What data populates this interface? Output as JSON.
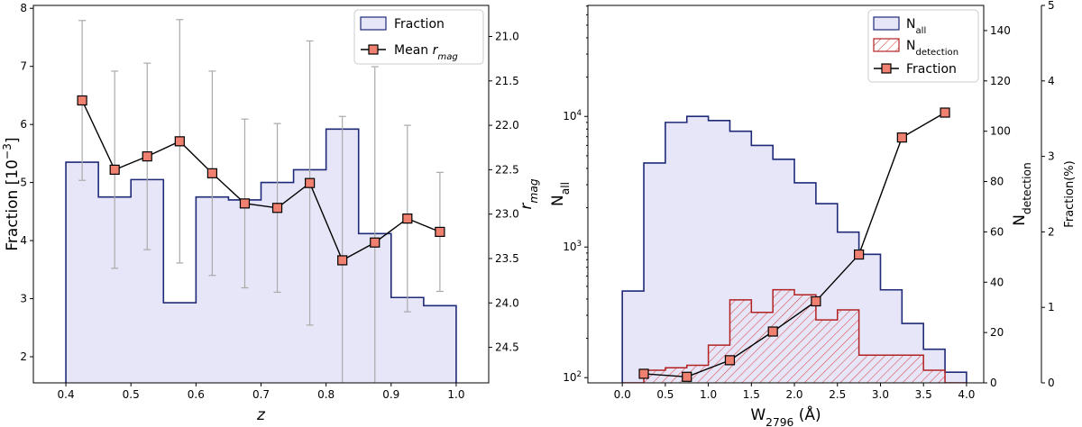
{
  "chart_data": [
    {
      "type": "bar",
      "panel": "left",
      "xlabel": "z",
      "ylabel": "Fraction [10⁻³]",
      "ylabel_right": "r_mag",
      "xlim": [
        0.35,
        1.05
      ],
      "ylim": [
        1.55,
        8.05
      ],
      "ylim_right_top": 20.65,
      "ylim_right_bottom": 24.9,
      "right_axis_inverted": true,
      "xticks": [
        "0.4",
        "0.5",
        "0.6",
        "0.7",
        "0.8",
        "0.9",
        "1.0"
      ],
      "yticks": [
        "2",
        "3",
        "4",
        "5",
        "6",
        "7",
        "8"
      ],
      "yticks_right": [
        "21.0",
        "21.5",
        "22.0",
        "22.5",
        "23.0",
        "23.5",
        "24.0",
        "24.5"
      ],
      "legend": {
        "placement": "top-right",
        "entries": [
          "Fraction",
          "Mean r_mag"
        ]
      },
      "bin_edges": [
        0.4,
        0.45,
        0.5,
        0.55,
        0.6,
        0.65,
        0.7,
        0.75,
        0.8,
        0.85,
        0.9,
        0.95,
        1.0
      ],
      "series": [
        {
          "name": "Fraction",
          "kind": "step-fill",
          "values": [
            5.35,
            4.75,
            5.05,
            2.93,
            4.75,
            4.7,
            5.0,
            5.22,
            5.92,
            4.12,
            3.02,
            2.88
          ]
        },
        {
          "name": "Mean r_mag",
          "kind": "line-markers-errorbars",
          "x": [
            0.425,
            0.475,
            0.525,
            0.575,
            0.625,
            0.675,
            0.725,
            0.775,
            0.825,
            0.875,
            0.925,
            0.975
          ],
          "y": [
            21.72,
            22.5,
            22.35,
            22.18,
            22.54,
            22.88,
            22.93,
            22.65,
            23.52,
            23.32,
            23.05,
            23.2
          ],
          "err": [
            0.9,
            1.11,
            1.05,
            1.37,
            1.15,
            0.95,
            0.95,
            1.6,
            1.62,
            1.98,
            1.05,
            0.67
          ]
        }
      ],
      "colors": {
        "fill": "#e6e6f8",
        "edge": "#1e2a78",
        "marker": "#f08070",
        "errorbar": "#aaaaaa"
      }
    },
    {
      "type": "bar",
      "panel": "right",
      "xlabel": "W2796 (Å)",
      "ylabel": "N_all",
      "ylabel_right_inner": "N_detection",
      "ylabel_right_outer": "Fraction(%)",
      "xlim": [
        -0.4,
        4.2
      ],
      "y_scale": "log",
      "ylim_log10": [
        1.96,
        4.85
      ],
      "ylim_right_inner": [
        0,
        150
      ],
      "ylim_right_outer": [
        0,
        5
      ],
      "xticks": [
        "0.0",
        "0.5",
        "1.0",
        "1.5",
        "2.0",
        "2.5",
        "3.0",
        "3.5",
        "4.0"
      ],
      "yticks_log": [
        "10^2",
        "10^3",
        "10^4"
      ],
      "yticks_right_inner": [
        "0",
        "20",
        "40",
        "60",
        "80",
        "100",
        "120",
        "140"
      ],
      "yticks_right_outer": [
        "0",
        "1",
        "2",
        "3",
        "4",
        "5"
      ],
      "legend": {
        "placement": "top-right",
        "entries": [
          "N_all",
          "N_detection",
          "Fraction"
        ]
      },
      "bin_edges": [
        0.0,
        0.25,
        0.5,
        0.75,
        1.0,
        1.25,
        1.5,
        1.75,
        2.0,
        2.25,
        2.5,
        2.75,
        3.0,
        3.25,
        3.5,
        3.75,
        4.0
      ],
      "series": [
        {
          "name": "N_all",
          "kind": "step-fill",
          "values": [
            460,
            4400,
            9000,
            10000,
            9300,
            7700,
            6000,
            4700,
            3100,
            2150,
            1300,
            880,
            470,
            260,
            165,
            110
          ]
        },
        {
          "name": "N_detection",
          "kind": "step-hatched",
          "values": [
            0,
            5,
            6,
            7,
            15,
            33,
            28,
            37,
            35,
            25,
            29,
            11,
            11,
            11,
            5,
            0
          ]
        },
        {
          "name": "Fraction",
          "kind": "line-markers",
          "x": [
            0.25,
            0.75,
            1.25,
            1.75,
            2.25,
            2.75,
            3.25,
            3.75
          ],
          "y": [
            0.12,
            0.08,
            0.3,
            0.68,
            1.08,
            1.7,
            3.25,
            3.58
          ]
        }
      ],
      "colors": {
        "fill": "#e6e6f8",
        "edge": "#1e2a78",
        "detection": "#b22222",
        "marker": "#f08070"
      }
    }
  ]
}
